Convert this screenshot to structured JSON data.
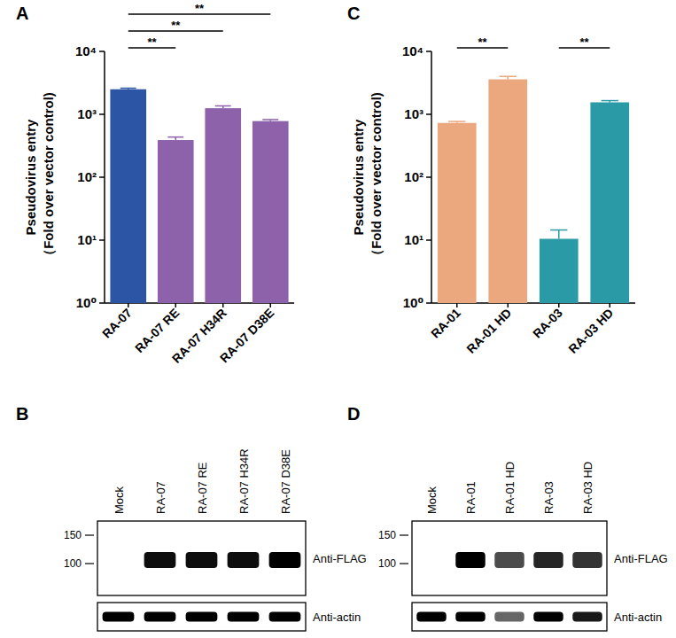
{
  "chart_data": [
    {
      "type": "bar",
      "title": "A",
      "ylabel": [
        "Pseudovirus entry",
        "（Fold over vector control)"
      ],
      "log": "y",
      "categories": [
        "RA-07",
        "RA-07 RE",
        "RA-07 H34R",
        "RA-07 D38E"
      ],
      "values": [
        2500,
        390,
        1250,
        780
      ],
      "errors": [
        100,
        45,
        110,
        45
      ],
      "colors": [
        "#2c55a5",
        "#8e62ab",
        "#8e62ab",
        "#8e62ab"
      ],
      "ylim": [
        1,
        10000
      ],
      "yticks": [
        {
          "value": 1,
          "label": "10⁰"
        },
        {
          "value": 10,
          "label": "10¹"
        },
        {
          "value": 100,
          "label": "10²"
        },
        {
          "value": 1000,
          "label": "10³"
        },
        {
          "value": 10000,
          "label": "10⁴"
        }
      ],
      "annotations": [
        {
          "text": "**",
          "from": "RA-07",
          "to": "RA-07 RE"
        },
        {
          "text": "**",
          "from": "RA-07",
          "to": "RA-07 H34R"
        },
        {
          "text": "**",
          "from": "RA-07",
          "to": "RA-07 D38E"
        }
      ]
    },
    {
      "type": "bar",
      "title": "C",
      "ylabel": [
        "Pseudovirus entry",
        "（Fold over vector control)"
      ],
      "log": "y",
      "categories": [
        "RA-01",
        "RA-01 HD",
        "RA-03",
        "RA-03 HD"
      ],
      "values": [
        730,
        3600,
        10.5,
        1550
      ],
      "errors": [
        40,
        400,
        4,
        100
      ],
      "colors": [
        "#eba77d",
        "#eba77d",
        "#2b9aa7",
        "#2b9aa7"
      ],
      "ylim": [
        1,
        10000
      ],
      "yticks": [
        {
          "value": 1,
          "label": "10⁰"
        },
        {
          "value": 10,
          "label": "10¹"
        },
        {
          "value": 100,
          "label": "10²"
        },
        {
          "value": 1000,
          "label": "10³"
        },
        {
          "value": 10000,
          "label": "10⁴"
        }
      ],
      "annotations": [
        {
          "text": "**",
          "from": "RA-01",
          "to": "RA-01 HD"
        },
        {
          "text": "**",
          "from": "RA-03",
          "to": "RA-03 HD"
        }
      ]
    }
  ],
  "blots": [
    {
      "title": "B",
      "lanes": [
        "Mock",
        "RA-07",
        "RA-07 RE",
        "RA-07 H34R",
        "RA-07 D38E"
      ],
      "markers": [
        150,
        100
      ],
      "rows": [
        {
          "label": "Anti-FLAG",
          "signal": [
            0,
            0.95,
            0.95,
            0.95,
            1
          ]
        },
        {
          "label": "Anti-actin",
          "signal": [
            1,
            1,
            1,
            1,
            1
          ]
        }
      ]
    },
    {
      "title": "D",
      "lanes": [
        "Mock",
        "RA-01",
        "RA-01 HD",
        "RA-03",
        "RA-03 HD"
      ],
      "markers": [
        150,
        100
      ],
      "rows": [
        {
          "label": "Anti-FLAG",
          "signal": [
            0,
            1,
            0.7,
            0.85,
            0.8
          ]
        },
        {
          "label": "Anti-actin",
          "signal": [
            1,
            1,
            0.6,
            1,
            0.9
          ]
        }
      ]
    }
  ]
}
